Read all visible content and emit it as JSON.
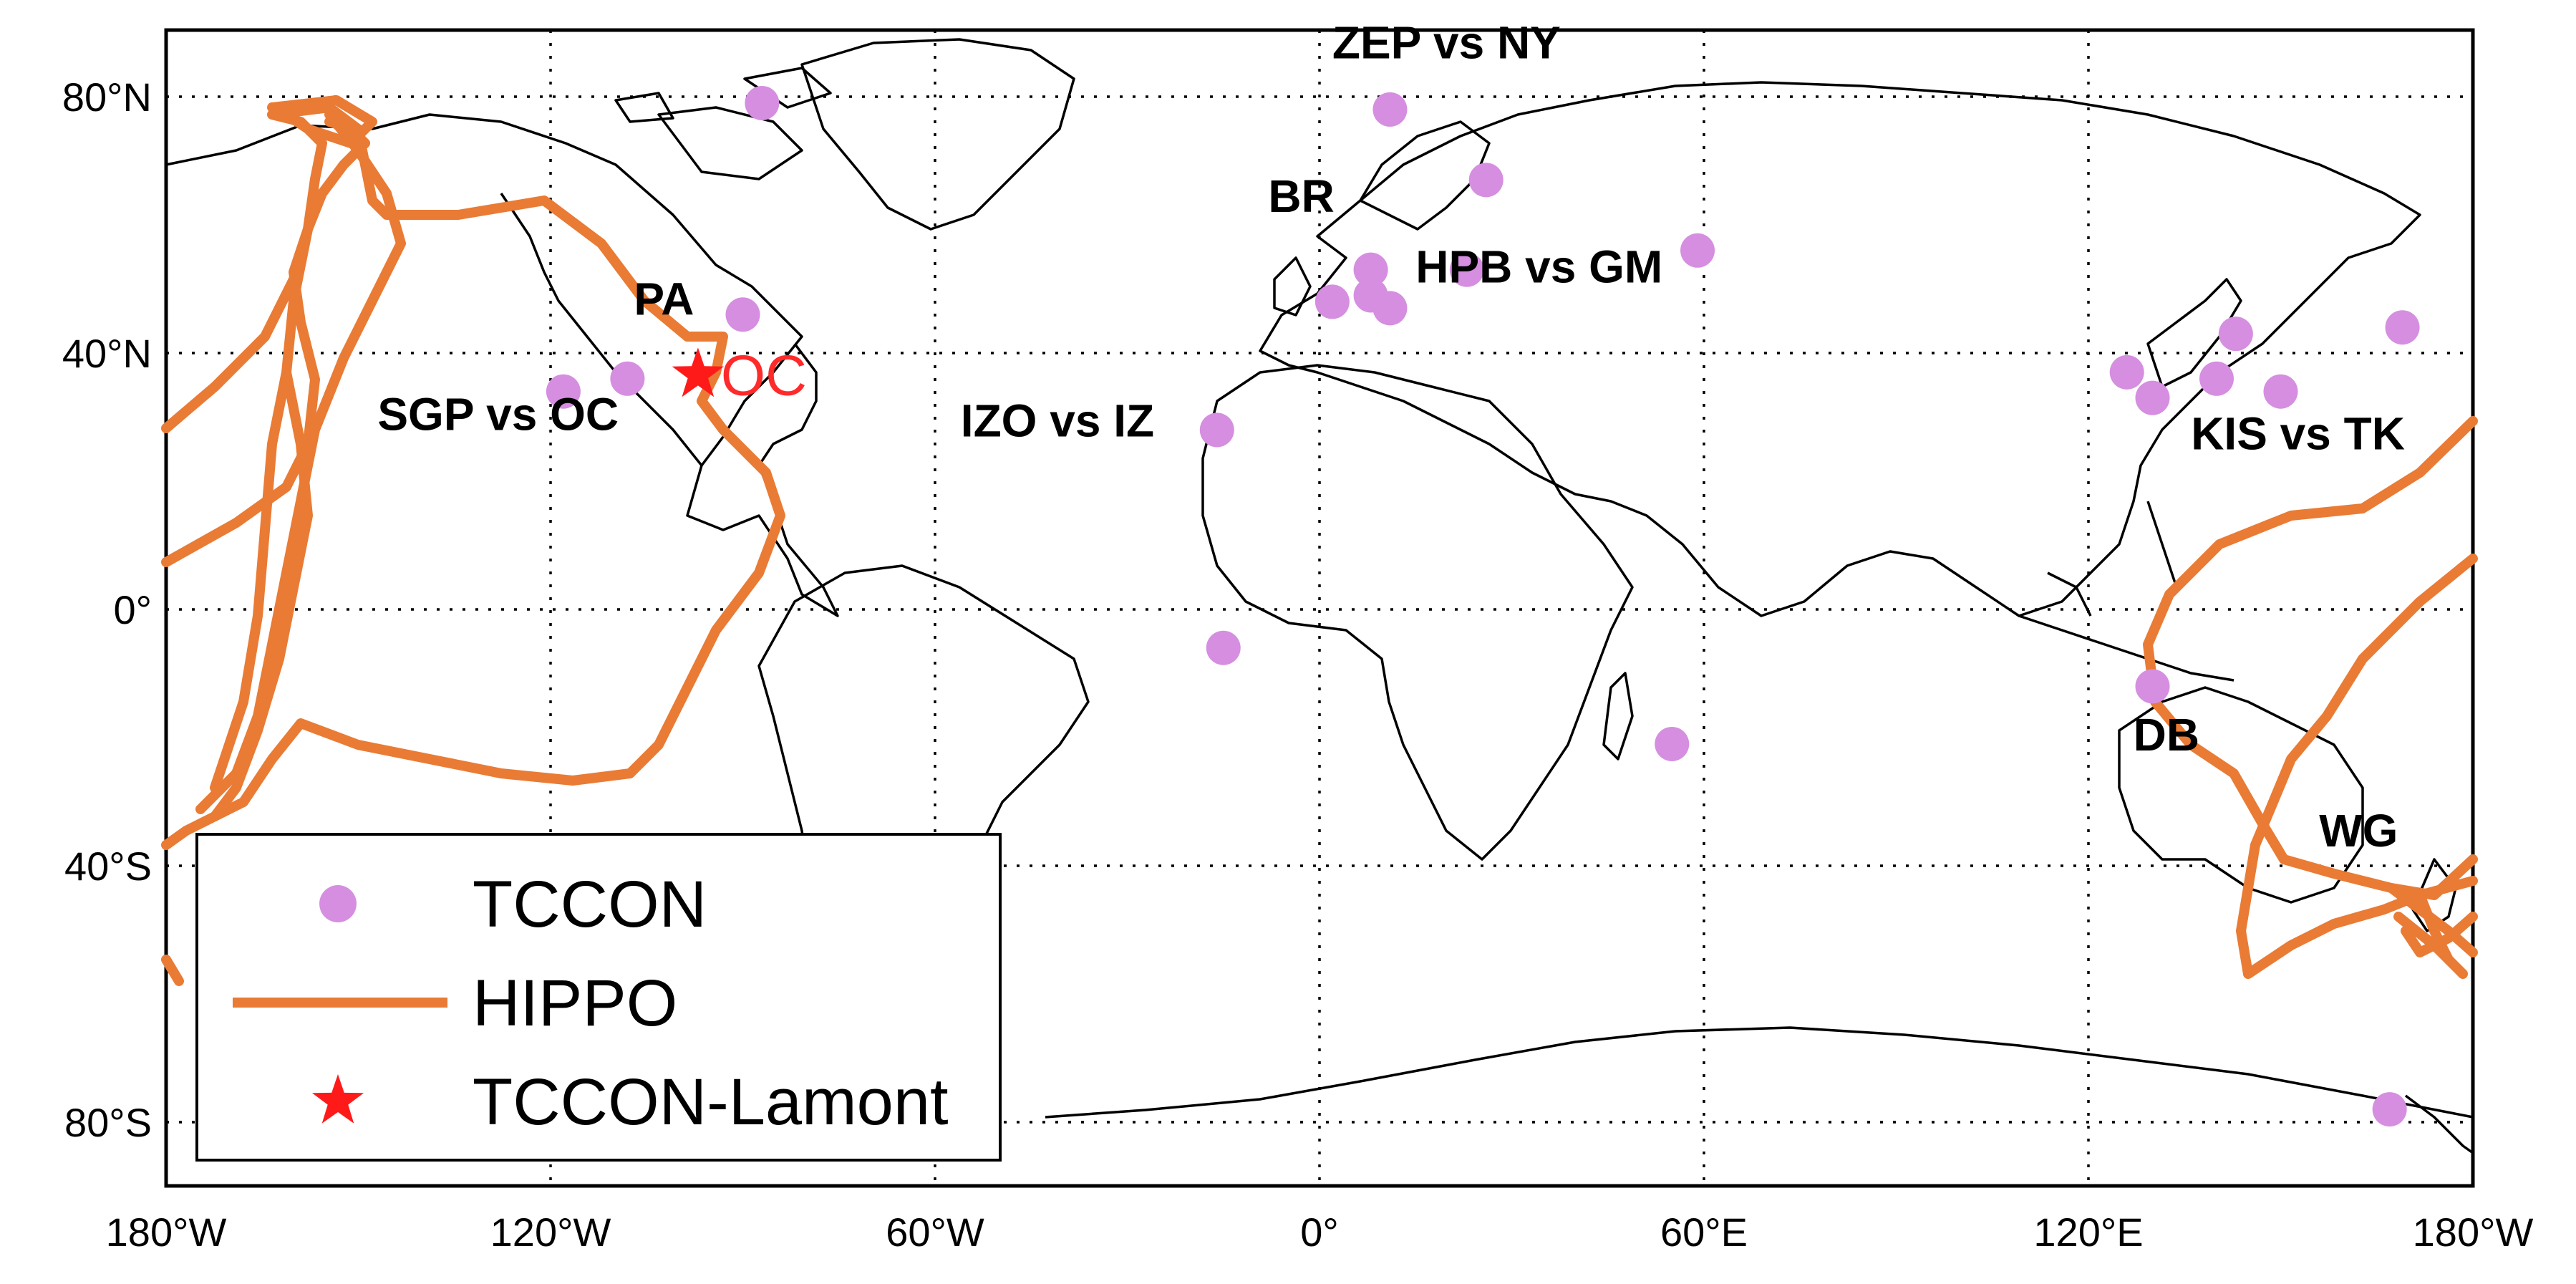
{
  "axes": {
    "lat_ticks": [
      {
        "lat": 80,
        "label": "80°N"
      },
      {
        "lat": 40,
        "label": "40°N"
      },
      {
        "lat": 0,
        "label": "0°"
      },
      {
        "lat": -40,
        "label": "40°S"
      },
      {
        "lat": -80,
        "label": "80°S"
      }
    ],
    "lon_ticks": [
      {
        "lon": -180,
        "label": "180°W"
      },
      {
        "lon": -120,
        "label": "120°W"
      },
      {
        "lon": -60,
        "label": "60°W"
      },
      {
        "lon": 0,
        "label": "0°"
      },
      {
        "lon": 60,
        "label": "60°E"
      },
      {
        "lon": 120,
        "label": "120°E"
      },
      {
        "lon": 180,
        "label": "180°W"
      }
    ]
  },
  "site_labels": [
    {
      "text": "ZEP vs NY",
      "lon": 2,
      "lat": 86
    },
    {
      "text": "BR",
      "lon": -8,
      "lat": 62
    },
    {
      "text": "HPB vs GM",
      "lon": 15,
      "lat": 51
    },
    {
      "text": "PA",
      "lon": -107,
      "lat": 46
    },
    {
      "text": "SGP vs OC",
      "lon": -147,
      "lat": 28
    },
    {
      "text": "IZO vs IZ",
      "lon": -56,
      "lat": 27
    },
    {
      "text": "KIS vs TK",
      "lon": 136,
      "lat": 25
    },
    {
      "text": "DB",
      "lon": 127,
      "lat": -22
    },
    {
      "text": "WG",
      "lon": 156,
      "lat": -37
    }
  ],
  "tccon_sites": [
    {
      "lon": -87,
      "lat": 79
    },
    {
      "lon": 11,
      "lat": 78
    },
    {
      "lon": 26,
      "lat": 67
    },
    {
      "lon": 59,
      "lat": 56
    },
    {
      "lon": 8,
      "lat": 53
    },
    {
      "lon": 23,
      "lat": 53
    },
    {
      "lon": 8,
      "lat": 49
    },
    {
      "lon": 2,
      "lat": 48
    },
    {
      "lon": 11,
      "lat": 47
    },
    {
      "lon": -90,
      "lat": 46
    },
    {
      "lon": -118,
      "lat": 34
    },
    {
      "lon": -108,
      "lat": 36
    },
    {
      "lon": -16,
      "lat": 28
    },
    {
      "lon": 126,
      "lat": 37
    },
    {
      "lon": 130,
      "lat": 33
    },
    {
      "lon": 140,
      "lat": 36
    },
    {
      "lon": 143,
      "lat": 43
    },
    {
      "lon": 150,
      "lat": 34
    },
    {
      "lon": 169,
      "lat": 44
    },
    {
      "lon": -15,
      "lat": -6
    },
    {
      "lon": 55,
      "lat": -21
    },
    {
      "lon": 130,
      "lat": -12
    },
    {
      "lon": 167,
      "lat": -78
    }
  ],
  "lamont": {
    "lon": -97,
    "lat": 36.6,
    "label": "OC"
  },
  "legend": {
    "tccon": "TCCON",
    "hippo": "HIPPO",
    "lamont": "TCCON-Lamont"
  },
  "colors": {
    "tccon": "#d58ee0",
    "hippo": "#e97b35",
    "lamont": "#ff1a1a"
  }
}
